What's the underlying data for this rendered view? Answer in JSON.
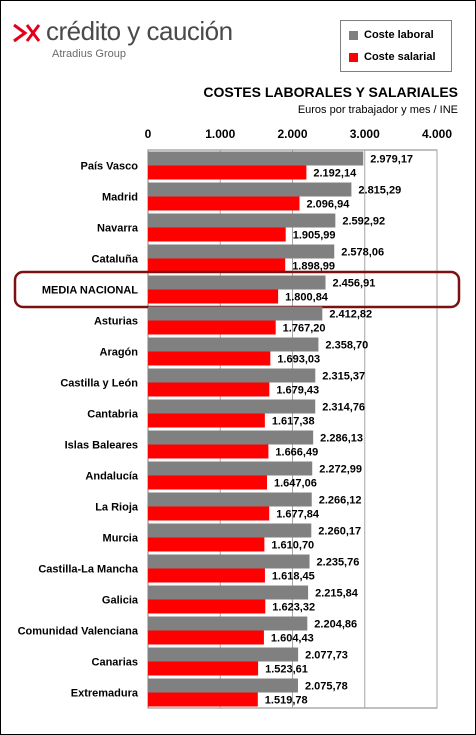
{
  "brand": {
    "name": "crédito y caución",
    "group": "Atradius Group",
    "colors": {
      "mark": "#e2001a",
      "text": "#4a4a4a"
    }
  },
  "legend": [
    {
      "label": "Coste laboral",
      "color": "#808080"
    },
    {
      "label": "Coste salarial",
      "color": "#ff0000"
    }
  ],
  "chart_data": {
    "type": "bar",
    "orientation": "horizontal",
    "title": "COSTES LABORALES Y SALARIALES",
    "subtitle": "Euros por trabajador y mes / INE",
    "xlim": [
      0,
      4000
    ],
    "ticks": [
      "0",
      "1.000",
      "2.000",
      "3.000",
      "4.000"
    ],
    "tick_values": [
      0,
      1000,
      2000,
      3000,
      4000
    ],
    "axis_position": "top",
    "grid": true,
    "legend_position": "top-right",
    "highlight_category": "MEDIA NACIONAL",
    "categories": [
      "País Vasco",
      "Madrid",
      "Navarra",
      "Cataluña",
      "MEDIA NACIONAL",
      "Asturias",
      "Aragón",
      "Castilla y León",
      "Cantabria",
      "Islas Baleares",
      "Andalucía",
      "La Rioja",
      "Murcia",
      "Castilla-La Mancha",
      "Galicia",
      "Comunidad Valenciana",
      "Canarias",
      "Extremadura"
    ],
    "series": [
      {
        "name": "Coste laboral",
        "color": "#808080",
        "values": [
          2979.17,
          2815.29,
          2592.92,
          2578.06,
          2456.91,
          2412.82,
          2358.7,
          2315.37,
          2314.76,
          2286.13,
          2272.99,
          2266.12,
          2260.17,
          2235.76,
          2215.84,
          2204.86,
          2077.73,
          2075.78
        ],
        "labels": [
          "2.979,17",
          "2.815,29",
          "2.592,92",
          "2.578,06",
          "2.456,91",
          "2.412,82",
          "2.358,70",
          "2.315,37",
          "2.314,76",
          "2.286,13",
          "2.272,99",
          "2.266,12",
          "2.260,17",
          "2.235,76",
          "2.215,84",
          "2.204,86",
          "2.077,73",
          "2.075,78"
        ]
      },
      {
        "name": "Coste salarial",
        "color": "#ff0000",
        "values": [
          2192.14,
          2096.94,
          1905.99,
          1898.99,
          1800.84,
          1767.2,
          1693.03,
          1679.43,
          1617.38,
          1666.49,
          1647.06,
          1677.84,
          1610.7,
          1618.45,
          1623.32,
          1604.43,
          1523.61,
          1519.78
        ],
        "labels": [
          "2.192,14",
          "2.096,94",
          "1.905,99",
          "1.898,99",
          "1.800,84",
          "1.767,20",
          "1.693,03",
          "1.679,43",
          "1.617,38",
          "1.666,49",
          "1.647,06",
          "1.677,84",
          "1.610,70",
          "1.618,45",
          "1.623,32",
          "1.604,43",
          "1.523,61",
          "1.519,78"
        ]
      }
    ]
  }
}
